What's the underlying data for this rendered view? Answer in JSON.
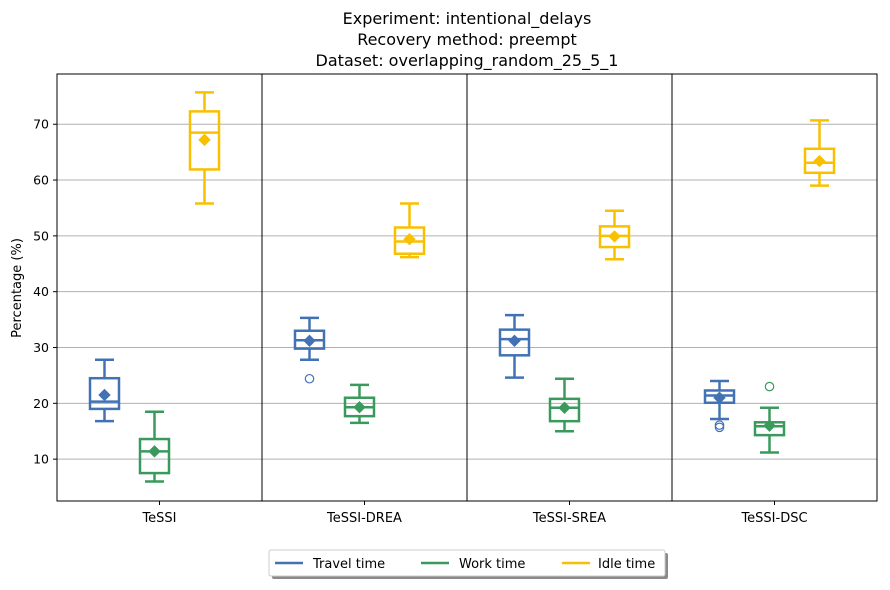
{
  "chart_data": {
    "type": "box",
    "title_lines": [
      "Experiment: intentional_delays",
      "Recovery method: preempt",
      "Dataset: overlapping_random_25_5_1"
    ],
    "ylabel": "Percentage (%)",
    "ylim": [
      2.5,
      79
    ],
    "yticks": [
      10,
      20,
      30,
      40,
      50,
      60,
      70
    ],
    "grid": "horizontal",
    "legend_position": "bottom-center",
    "groups": [
      "TeSSI",
      "TeSSI-DREA",
      "TeSSI-SREA",
      "TeSSI-DSC"
    ],
    "series": [
      {
        "name": "Travel time",
        "color": "#4272b4",
        "boxes": [
          {
            "whisker_low": 16.8,
            "q1": 19.0,
            "median": 20.3,
            "q3": 24.5,
            "whisker_high": 27.8,
            "mean": 21.5,
            "outliers": []
          },
          {
            "whisker_low": 27.8,
            "q1": 29.8,
            "median": 31.3,
            "q3": 33.0,
            "whisker_high": 35.3,
            "mean": 31.2,
            "outliers": [
              24.4
            ]
          },
          {
            "whisker_low": 24.6,
            "q1": 28.6,
            "median": 31.5,
            "q3": 33.2,
            "whisker_high": 35.8,
            "mean": 31.2,
            "outliers": []
          },
          {
            "whisker_low": 17.2,
            "q1": 20.1,
            "median": 21.4,
            "q3": 22.3,
            "whisker_high": 24.0,
            "mean": 21.0,
            "outliers": [
              16.1,
              15.7
            ]
          }
        ]
      },
      {
        "name": "Work time",
        "color": "#3a9a5d",
        "boxes": [
          {
            "whisker_low": 6.0,
            "q1": 7.5,
            "median": 11.4,
            "q3": 13.6,
            "whisker_high": 18.5,
            "mean": 11.4,
            "outliers": []
          },
          {
            "whisker_low": 16.5,
            "q1": 17.7,
            "median": 19.3,
            "q3": 21.0,
            "whisker_high": 23.3,
            "mean": 19.3,
            "outliers": []
          },
          {
            "whisker_low": 15.0,
            "q1": 16.8,
            "median": 19.2,
            "q3": 20.8,
            "whisker_high": 24.4,
            "mean": 19.2,
            "outliers": []
          },
          {
            "whisker_low": 11.2,
            "q1": 14.3,
            "median": 15.9,
            "q3": 16.6,
            "whisker_high": 19.2,
            "mean": 16.0,
            "outliers": [
              23.0
            ]
          }
        ]
      },
      {
        "name": "Idle time",
        "color": "#f9c000",
        "boxes": [
          {
            "whisker_low": 55.8,
            "q1": 61.9,
            "median": 68.5,
            "q3": 72.3,
            "whisker_high": 75.7,
            "mean": 67.2,
            "outliers": []
          },
          {
            "whisker_low": 46.2,
            "q1": 46.8,
            "median": 49.0,
            "q3": 51.5,
            "whisker_high": 55.8,
            "mean": 49.4,
            "outliers": []
          },
          {
            "whisker_low": 45.8,
            "q1": 48.0,
            "median": 50.0,
            "q3": 51.7,
            "whisker_high": 54.5,
            "mean": 49.9,
            "outliers": []
          },
          {
            "whisker_low": 59.0,
            "q1": 61.3,
            "median": 63.1,
            "q3": 65.6,
            "whisker_high": 70.7,
            "mean": 63.4,
            "outliers": []
          }
        ]
      }
    ]
  }
}
